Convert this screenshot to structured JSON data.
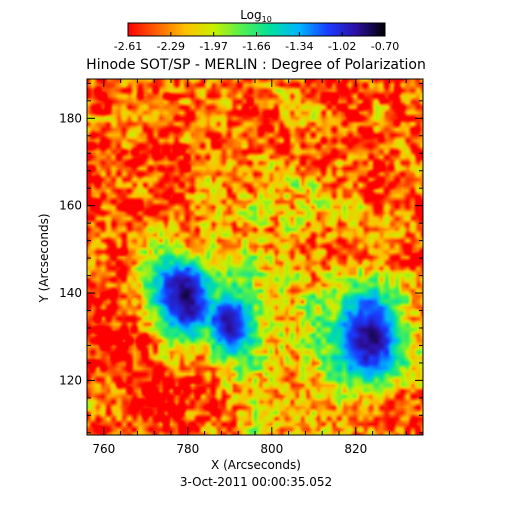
{
  "chart_data": {
    "type": "heatmap",
    "title": "Hinode SOT/SP - MERLIN : Degree of Polarization",
    "xlabel": "X (Arcseconds)",
    "ylabel": "Y (Arcseconds)",
    "xlim": [
      756,
      836
    ],
    "ylim": [
      107.5,
      189
    ],
    "x_ticks": [
      760,
      780,
      800,
      820
    ],
    "y_ticks": [
      120,
      140,
      160,
      180
    ],
    "colorbar": {
      "title_base": "Log",
      "title_sub": "10",
      "ticks": [
        "-2.61",
        "-2.29",
        "-1.97",
        "-1.66",
        "-1.34",
        "-1.02",
        "-0.70"
      ],
      "range": [
        -2.61,
        -0.7
      ],
      "colormap": "rainbow (red to black)"
    },
    "timestamp": "3-Oct-2011 00:00:35.052",
    "features": [
      {
        "name": "spot-left",
        "center_x": 781,
        "center_y": 138,
        "value": -0.85
      },
      {
        "name": "spot-right",
        "center_x": 824,
        "center_y": 130,
        "value": -0.8
      }
    ],
    "colors": {
      "colormap_stops": [
        "#ff0000",
        "#ff6000",
        "#ffc000",
        "#c8f000",
        "#50f050",
        "#00e0a0",
        "#00b4ff",
        "#1a3cff",
        "#2c10a0",
        "#000000"
      ]
    }
  }
}
